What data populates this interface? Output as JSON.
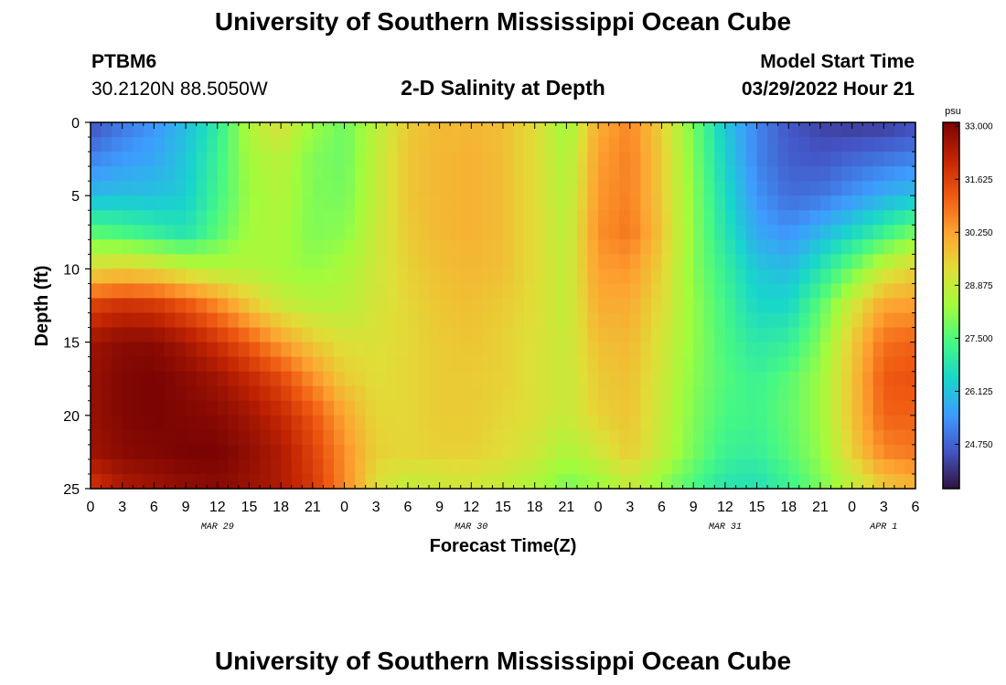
{
  "page": {
    "title": "University of Southern Mississippi Ocean Cube",
    "footer_title": "University of Southern Mississippi Ocean Cube",
    "station_id": "PTBM6",
    "station_coords": "30.2120N  88.5050W",
    "subtitle": "2-D Salinity at Depth",
    "model_start_label": "Model Start Time",
    "model_start_value": "03/29/2022 Hour 21"
  },
  "chart_data": {
    "type": "heatmap",
    "title": "2-D Salinity at Depth",
    "xlabel": "Forecast Time(Z)",
    "ylabel": "Depth (ft)",
    "x_tick_labels": [
      "0",
      "3",
      "6",
      "9",
      "12",
      "15",
      "18",
      "21",
      "0",
      "3",
      "6",
      "9",
      "12",
      "15",
      "18",
      "21",
      "0",
      "3",
      "6",
      "9",
      "12",
      "15",
      "18",
      "21",
      "0",
      "3",
      "6"
    ],
    "x_range_hours": [
      0,
      78
    ],
    "date_labels": [
      {
        "label": "MAR 29",
        "hour": 12
      },
      {
        "label": "MAR 30",
        "hour": 36
      },
      {
        "label": "MAR 31",
        "hour": 60
      },
      {
        "label": "APR 1",
        "hour": 75
      }
    ],
    "y_tick_labels": [
      "0",
      "5",
      "10",
      "15",
      "20",
      "25"
    ],
    "ylim": [
      0,
      25
    ],
    "y_inverted": true,
    "colorbar": {
      "unit": "psu",
      "tick_labels": [
        "33.000",
        "31.625",
        "30.250",
        "28.875",
        "27.500",
        "26.125",
        "24.750"
      ],
      "tick_values": [
        33.0,
        31.625,
        30.25,
        28.875,
        27.5,
        26.125,
        24.75
      ],
      "range": [
        23.6,
        33.1
      ],
      "colors": [
        "#30123b",
        "#4454c4",
        "#3e9bfe",
        "#18d6cb",
        "#46f884",
        "#a2fc3c",
        "#e1dd37",
        "#fea331",
        "#ef5911",
        "#c22402",
        "#7a0403"
      ]
    },
    "grid_x_hours": [
      0,
      3,
      6,
      9,
      12,
      15,
      18,
      21,
      24,
      27,
      30,
      33,
      36,
      39,
      42,
      45,
      48,
      51,
      54,
      57,
      60,
      63,
      66,
      69,
      72,
      75,
      78
    ],
    "grid_depths_ft": [
      0,
      2.5,
      5,
      7.5,
      10,
      12.5,
      15,
      17.5,
      20,
      22.5,
      25
    ],
    "salinity_psu": [
      [
        24.5,
        25.0,
        25.4,
        26.0,
        27.0,
        28.6,
        29.2,
        28.3,
        27.8,
        28.7,
        29.6,
        29.9,
        29.9,
        29.8,
        29.3,
        28.3,
        30.1,
        30.6,
        29.5,
        27.9,
        26.2,
        25.2,
        24.6,
        24.3,
        24.2,
        24.2,
        24.4
      ],
      [
        25.2,
        25.5,
        25.7,
        26.2,
        27.2,
        28.4,
        28.7,
        28.0,
        27.8,
        28.8,
        29.7,
        29.9,
        30.0,
        29.8,
        29.3,
        28.5,
        30.3,
        30.7,
        29.6,
        28.0,
        26.4,
        25.2,
        24.7,
        24.6,
        24.8,
        25.0,
        25.2
      ],
      [
        26.0,
        26.1,
        26.1,
        26.3,
        27.3,
        28.3,
        28.6,
        28.0,
        27.9,
        28.8,
        29.7,
        29.9,
        30.0,
        29.8,
        29.3,
        28.6,
        30.4,
        30.7,
        29.6,
        28.1,
        26.6,
        25.4,
        24.9,
        25.0,
        25.4,
        25.8,
        26.1
      ],
      [
        27.6,
        27.4,
        27.1,
        26.8,
        27.6,
        28.4,
        28.5,
        28.0,
        28.1,
        28.9,
        29.6,
        29.9,
        30.0,
        29.8,
        29.3,
        28.7,
        30.5,
        30.8,
        29.7,
        28.1,
        26.8,
        25.7,
        25.4,
        25.9,
        26.5,
        27.2,
        27.9
      ],
      [
        29.3,
        29.5,
        29.3,
        28.9,
        28.6,
        28.6,
        28.4,
        28.2,
        28.5,
        29.0,
        29.5,
        29.8,
        29.9,
        29.8,
        29.3,
        28.8,
        30.3,
        30.4,
        29.5,
        28.1,
        27.1,
        26.2,
        26.0,
        26.8,
        27.8,
        28.9,
        29.5
      ],
      [
        31.6,
        31.9,
        31.8,
        31.3,
        30.6,
        29.7,
        29.0,
        28.7,
        28.7,
        29.1,
        29.4,
        29.7,
        29.8,
        29.6,
        29.3,
        28.8,
        30.1,
        30.1,
        29.3,
        28.2,
        27.3,
        26.5,
        26.5,
        27.6,
        29.0,
        30.2,
        30.3
      ],
      [
        32.6,
        32.9,
        32.9,
        32.5,
        31.9,
        31.2,
        30.3,
        29.6,
        29.2,
        29.2,
        29.4,
        29.6,
        29.7,
        29.5,
        29.2,
        28.9,
        29.8,
        29.9,
        29.1,
        28.2,
        27.4,
        26.9,
        27.1,
        28.0,
        29.6,
        30.9,
        31.1
      ],
      [
        32.7,
        33.0,
        33.1,
        32.9,
        32.6,
        32.1,
        31.5,
        30.5,
        29.6,
        29.3,
        29.4,
        29.6,
        29.6,
        29.5,
        29.2,
        28.9,
        29.6,
        29.8,
        29.0,
        28.1,
        27.5,
        27.2,
        27.6,
        28.3,
        29.7,
        31.2,
        31.3
      ],
      [
        32.7,
        33.0,
        33.1,
        33.0,
        32.9,
        32.6,
        32.1,
        31.3,
        30.2,
        29.4,
        29.4,
        29.6,
        29.6,
        29.4,
        29.2,
        28.9,
        29.5,
        29.7,
        28.9,
        28.0,
        27.4,
        27.3,
        27.7,
        28.3,
        29.7,
        31.1,
        31.1
      ],
      [
        32.6,
        32.9,
        33.0,
        33.1,
        33.1,
        32.8,
        32.4,
        31.6,
        30.5,
        29.5,
        29.4,
        29.5,
        29.5,
        29.3,
        29.0,
        28.5,
        29.0,
        29.6,
        28.8,
        27.9,
        27.2,
        27.1,
        27.6,
        28.2,
        29.5,
        30.6,
        30.8
      ],
      [
        31.8,
        32.4,
        32.6,
        32.8,
        32.9,
        32.7,
        32.4,
        31.8,
        30.6,
        29.2,
        28.8,
        28.9,
        29.0,
        28.8,
        28.5,
        27.9,
        28.2,
        28.8,
        28.1,
        27.4,
        26.8,
        26.7,
        27.2,
        27.9,
        28.7,
        29.6,
        29.9
      ]
    ]
  }
}
